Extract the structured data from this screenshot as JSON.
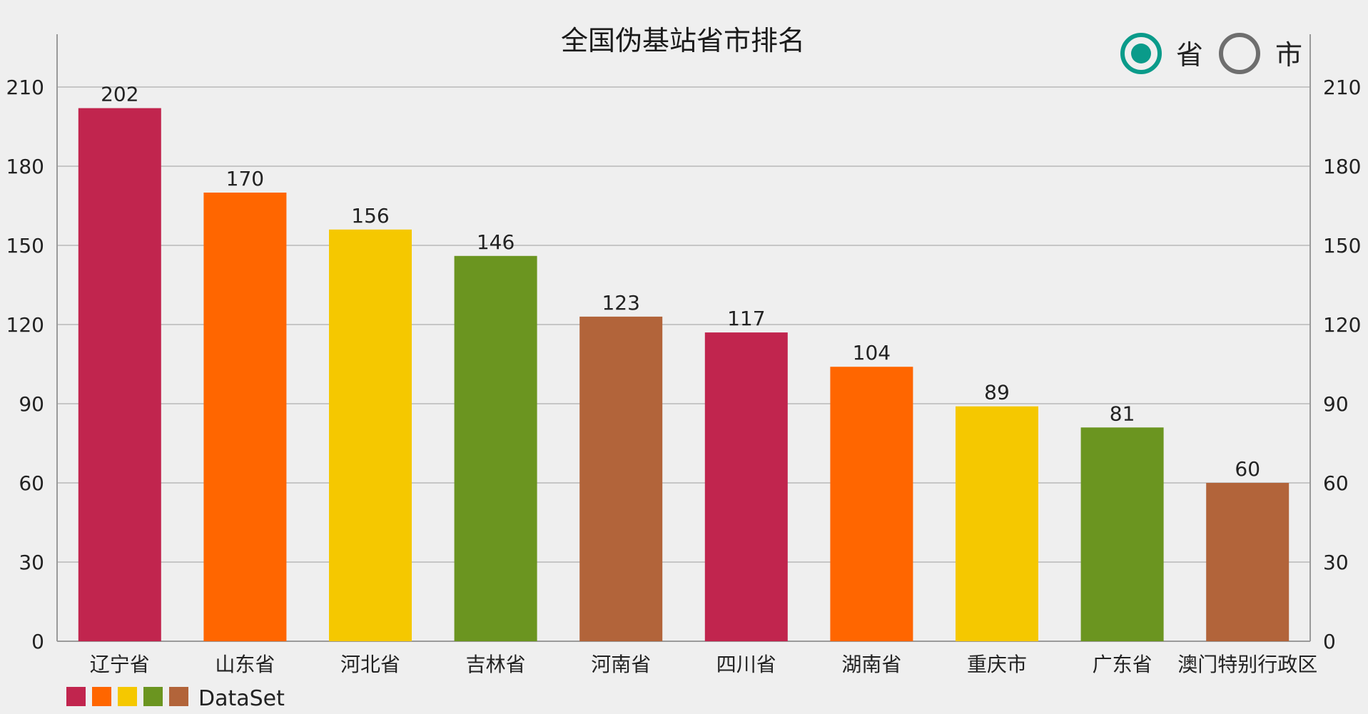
{
  "chart_data": {
    "type": "bar",
    "title": "全国伪基站省市排名",
    "categories": [
      "辽宁省",
      "山东省",
      "河北省",
      "吉林省",
      "河南省",
      "四川省",
      "湖南省",
      "重庆市",
      "广东省",
      "澳门特别行政区"
    ],
    "series": [
      {
        "name": "DataSet",
        "values": [
          202,
          170,
          156,
          146,
          123,
          117,
          104,
          89,
          81,
          60
        ]
      }
    ],
    "colors": [
      "#c1254e",
      "#ff6600",
      "#f5c800",
      "#6b9520",
      "#b2643a"
    ],
    "ylim": [
      0,
      230
    ],
    "yticks": [
      0,
      30,
      60,
      90,
      120,
      150,
      180,
      210
    ],
    "grid": true,
    "legend": {
      "placement": "bottom-left",
      "label": "DataSet"
    },
    "xlabel": "",
    "ylabel": ""
  },
  "toggle": {
    "options": [
      {
        "label": "省",
        "selected": true
      },
      {
        "label": "市",
        "selected": false
      }
    ],
    "selected_color": "#0a9b8a",
    "unselected_color": "#6e6e6e"
  }
}
